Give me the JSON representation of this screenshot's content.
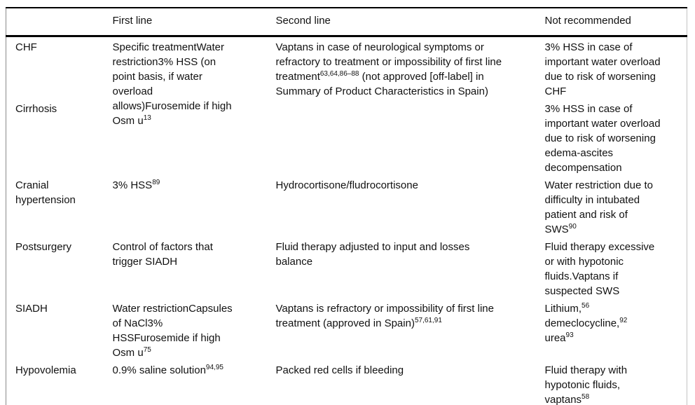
{
  "table": {
    "headers": [
      "",
      "First line",
      "Second line",
      "Not recommended"
    ],
    "rows": [
      {
        "condition": "CHF",
        "first_line": "Specific treatmentWater\nrestriction3% HSS (on\npoint basis, if water\noverload\nallows)Furosemide if high\nOsm u^{13}",
        "second_line": "Vaptans in case of neurological symptoms or\nrefractory to treatment or impossibility of first line\ntreatment^{63,64,86–88} (not approved [off-label] in\nSummary of Product Characteristics in Spain)",
        "not_recommended": "3% HSS in case of\nimportant water overload\ndue to risk of worsening\nCHF"
      },
      {
        "condition": "Cirrhosis",
        "first_line": null,
        "second_line": null,
        "not_recommended": "3% HSS in case of\nimportant water overload\ndue to risk of worsening\nedema-ascites\ndecompensation"
      },
      {
        "condition": "Cranial\nhypertension",
        "first_line": "3% HSS^{89}",
        "second_line": "Hydrocortisone/fludrocortisone",
        "not_recommended": "Water restriction due to\ndifficulty in intubated\npatient and risk of\nSWS^{90}"
      },
      {
        "condition": "Postsurgery",
        "first_line": "Control of factors that\ntrigger SIADH",
        "second_line": "Fluid therapy adjusted to input and losses\nbalance",
        "not_recommended": "Fluid therapy excessive\nor with hypotonic\nfluids.Vaptans if\nsuspected SWS"
      },
      {
        "condition": "SIADH",
        "first_line": "Water restrictionCapsules\nof NaCl3%\nHSSFurosemide if high\nOsm u^{75}",
        "second_line": "Vaptans is refractory or impossibility of first line\ntreatment (approved in Spain)^{57,61,91}",
        "not_recommended": "Lithium,^{56}\ndemeclocycline,^{92}\nurea^{93}"
      },
      {
        "condition": "Hypovolemia",
        "first_line": "0.9% saline solution^{94,95}",
        "second_line": "Packed red cells if bleeding",
        "not_recommended": "Fluid therapy with\nhypotonic fluids,\nvaptans^{58}"
      }
    ]
  }
}
